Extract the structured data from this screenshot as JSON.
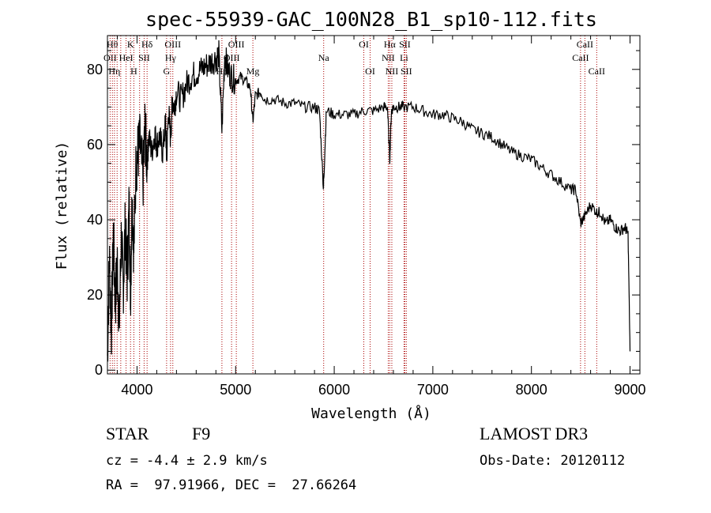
{
  "chart_data": {
    "type": "line",
    "title": "spec-55939-GAC_100N28_B1_sp10-112.fits",
    "xlabel": "Wavelength (Å)",
    "ylabel": "Flux (relative)",
    "xlim": [
      3700,
      9100
    ],
    "ylim": [
      -1,
      89
    ],
    "xticks": [
      4000,
      5000,
      6000,
      7000,
      8000,
      9000
    ],
    "yticks": [
      0,
      20,
      40,
      60,
      80
    ],
    "grid": false,
    "series": [
      {
        "line_color": "#000000",
        "x": [
          3700,
          3720,
          3740,
          3760,
          3780,
          3800,
          3820,
          3840,
          3860,
          3880,
          3900,
          3920,
          3934,
          3950,
          3968,
          3990,
          4010,
          4030,
          4060,
          4080,
          4101,
          4120,
          4150,
          4180,
          4200,
          4230,
          4260,
          4290,
          4300,
          4320,
          4340,
          4360,
          4380,
          4400,
          4450,
          4500,
          4550,
          4600,
          4650,
          4700,
          4750,
          4800,
          4830,
          4861,
          4890,
          4920,
          4960,
          5000,
          5050,
          5100,
          5150,
          5175,
          5200,
          5250,
          5300,
          5400,
          5500,
          5600,
          5700,
          5800,
          5850,
          5890,
          5896,
          5920,
          6000,
          6100,
          6200,
          6300,
          6400,
          6500,
          6540,
          6563,
          6580,
          6600,
          6650,
          6700,
          6800,
          6900,
          7000,
          7100,
          7200,
          7300,
          7400,
          7500,
          7600,
          7700,
          7800,
          7900,
          8000,
          8100,
          8200,
          8300,
          8400,
          8450,
          8498,
          8542,
          8600,
          8662,
          8700,
          8750,
          8800,
          8850,
          8900,
          8950,
          8980,
          9000
        ],
        "y": [
          4,
          30,
          10,
          36,
          18,
          28,
          12,
          35,
          22,
          38,
          25,
          44,
          20,
          46,
          32,
          55,
          58,
          60,
          50,
          64,
          55,
          62,
          58,
          63,
          60,
          62,
          58,
          66,
          56,
          69,
          62,
          72,
          70,
          74,
          72,
          76,
          78,
          79,
          80,
          81,
          82,
          83,
          84,
          64,
          84,
          80,
          78,
          77,
          78,
          77,
          75,
          66,
          73,
          74,
          72,
          72,
          71,
          71,
          70,
          70,
          69,
          49,
          52,
          69,
          68,
          68,
          68,
          69,
          69,
          70,
          70,
          56,
          69,
          70,
          70,
          70,
          70,
          69,
          68,
          68,
          67,
          66,
          64,
          63,
          62,
          60,
          58,
          57,
          56,
          54,
          52,
          50,
          48,
          48,
          39,
          41,
          44,
          42,
          42,
          39,
          40,
          38,
          37,
          38,
          36,
          5
        ]
      }
    ],
    "lines": [
      {
        "wl": 3727,
        "label": "OII",
        "row": 1
      },
      {
        "wl": 3750,
        "label": "Hθ",
        "row": 0
      },
      {
        "wl": 3771,
        "label": "Hη",
        "row": 2
      },
      {
        "wl": 3798,
        "label": "",
        "row": -1
      },
      {
        "wl": 3835,
        "label": "",
        "row": -1
      },
      {
        "wl": 3889,
        "label": "HeI",
        "row": 1
      },
      {
        "wl": 3934,
        "label": "K",
        "row": 0
      },
      {
        "wl": 3968,
        "label": "H",
        "row": 2
      },
      {
        "wl": 4026,
        "label": "",
        "row": -1
      },
      {
        "wl": 4072,
        "label": "SII",
        "row": 1
      },
      {
        "wl": 4102,
        "label": "Hδ",
        "row": 0
      },
      {
        "wl": 4300,
        "label": "G",
        "row": 2
      },
      {
        "wl": 4340,
        "label": "Hγ",
        "row": 1
      },
      {
        "wl": 4363,
        "label": "OIII",
        "row": 0
      },
      {
        "wl": 4861,
        "label": "Hβ",
        "row": 2
      },
      {
        "wl": 4959,
        "label": "OIII",
        "row": 1
      },
      {
        "wl": 5007,
        "label": "OIII",
        "row": 0
      },
      {
        "wl": 5175,
        "label": "Mg",
        "row": 2
      },
      {
        "wl": 5893,
        "label": "Na",
        "row": 1
      },
      {
        "wl": 6300,
        "label": "OI",
        "row": 0
      },
      {
        "wl": 6364,
        "label": "OI",
        "row": 2
      },
      {
        "wl": 6548,
        "label": "NII",
        "row": 1
      },
      {
        "wl": 6563,
        "label": "Hα",
        "row": 0
      },
      {
        "wl": 6584,
        "label": "NII",
        "row": 2
      },
      {
        "wl": 6708,
        "label": "Li",
        "row": 1
      },
      {
        "wl": 6716,
        "label": "SII",
        "row": 0
      },
      {
        "wl": 6731,
        "label": "SII",
        "row": 2
      },
      {
        "wl": 8498,
        "label": "CaII",
        "row": 1
      },
      {
        "wl": 8542,
        "label": "CaII",
        "row": 0
      },
      {
        "wl": 8662,
        "label": "CaII",
        "row": 2
      }
    ],
    "line_color": "#aa0000"
  },
  "info": {
    "class": "STAR",
    "subclass": "F9",
    "survey": "LAMOST DR3",
    "cz": "cz = -4.4 ± 2.9 km/s",
    "obs_date": "Obs-Date: 20120112",
    "coords": "RA =  97.91966, DEC =  27.66264"
  }
}
